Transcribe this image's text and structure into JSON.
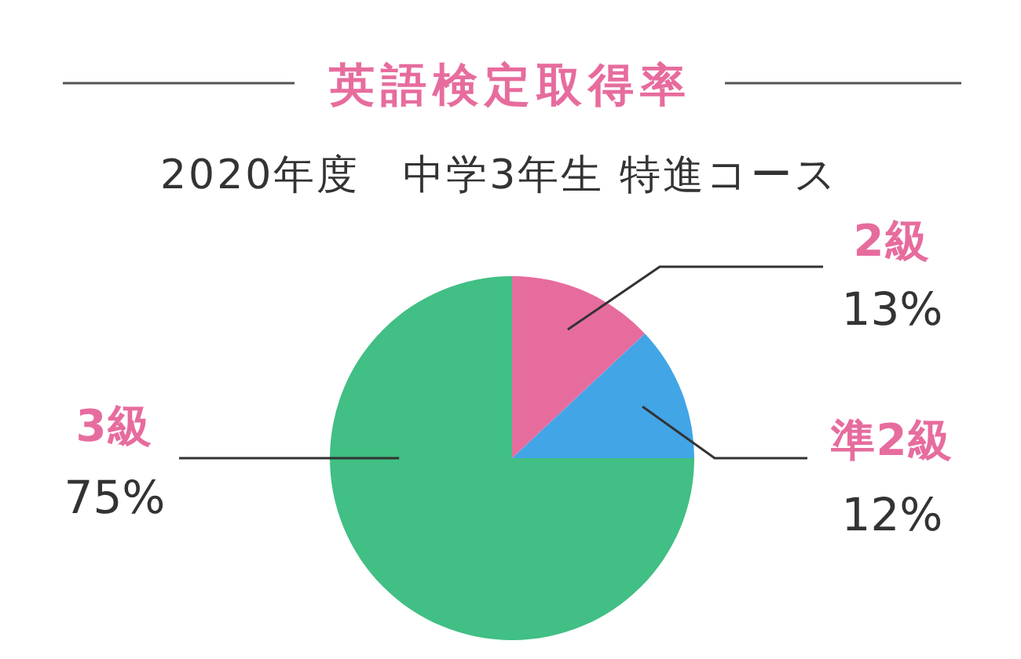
{
  "chart_data": {
    "type": "pie",
    "title": "英語検定取得率",
    "subtitle": "2020年度　中学3年生 特進コース",
    "categories": [
      "2級",
      "準2級",
      "3級"
    ],
    "values": [
      13,
      12,
      75
    ],
    "colors": [
      "#e76c9e",
      "#42a5e6",
      "#41bf84"
    ],
    "value_labels": [
      "13%",
      "12%",
      "75%"
    ]
  }
}
